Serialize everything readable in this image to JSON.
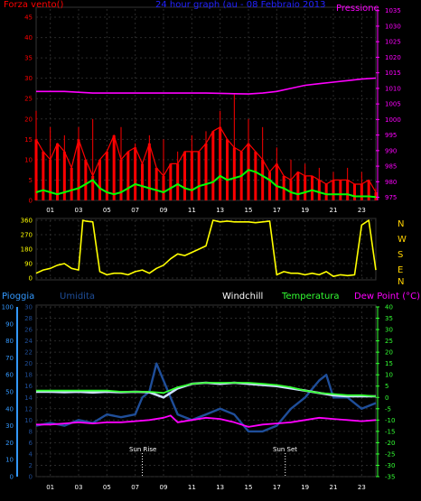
{
  "header": {
    "top_left": "Forza vento()",
    "top_center": "24 hour graph (au - 08 Febbraio 2013",
    "top_right": "Pressione",
    "bottom_pioggia": "Pioggia",
    "bottom_umidita": "Umidita",
    "bottom_windchill": "Windchill",
    "bottom_temperatura": "Temperatura",
    "bottom_dewpoint": "Dew Point (°C)"
  },
  "compass": [
    "N",
    "W",
    "S",
    "E",
    "N"
  ],
  "sun": {
    "rise": "Sun Rise",
    "set": "Sun Set"
  },
  "colors": {
    "wind_gust": "#ff0000",
    "wind_avg": "#00ff00",
    "pressure": "#ff00ff",
    "direction": "#ffff00",
    "rain": "#3399ff",
    "humidity": "#1f4e99",
    "windchill": "#cfe0ff",
    "temperature": "#33ff33",
    "dewpoint": "#ff00ff",
    "axis_wind": "#ff0000",
    "axis_pressure": "#ff00ff",
    "axis_dir": "#ffff00",
    "axis_temp": "#33ff33",
    "axis_rain": "#3399ff",
    "axis_hum": "#1f4e99"
  },
  "chart_data": [
    {
      "type": "line",
      "title": "24 hour graph (au - 08 Febbraio 2013",
      "x_tick_labels": [
        "01",
        "03",
        "05",
        "07",
        "09",
        "11",
        "13",
        "15",
        "17",
        "19",
        "21",
        "23"
      ],
      "x_ticks_hours": [
        1,
        3,
        5,
        7,
        9,
        11,
        13,
        15,
        17,
        19,
        21,
        23
      ],
      "left_axis": {
        "label": "Forza vento()",
        "ticks": [
          0,
          5,
          10,
          15,
          20,
          25,
          30,
          35,
          40,
          45
        ],
        "ylim": [
          0,
          47
        ]
      },
      "right_axis": {
        "label": "Pressione",
        "ticks": [
          975,
          980,
          985,
          990,
          995,
          1000,
          1005,
          1010,
          1015,
          1020,
          1025,
          1030,
          1035
        ],
        "ylim": [
          974,
          1035.5
        ]
      },
      "series": [
        {
          "name": "Forza vento",
          "axis": "left",
          "x": [
            0,
            0.5,
            1,
            1.5,
            2,
            2.5,
            3,
            3.5,
            4,
            4.5,
            5,
            5.5,
            6,
            6.5,
            7,
            7.5,
            8,
            8.5,
            9,
            9.5,
            10,
            10.5,
            11,
            11.5,
            12,
            12.5,
            13,
            13.5,
            14,
            14.5,
            15,
            15.5,
            16,
            16.5,
            17,
            17.5,
            18,
            18.5,
            19,
            19.5,
            20,
            20.5,
            21,
            21.5,
            22,
            22.5,
            23,
            23.5,
            24
          ],
          "values": [
            15,
            12,
            10,
            14,
            12,
            8,
            15,
            10,
            6,
            10,
            12,
            16,
            10,
            12,
            13,
            9,
            14,
            8,
            6,
            9,
            9,
            12,
            12,
            12,
            14,
            17,
            18,
            15,
            13,
            12,
            14,
            12,
            10,
            7,
            9,
            6,
            5,
            7,
            6,
            6,
            5,
            4,
            5,
            5,
            5,
            4,
            4,
            5,
            2
          ]
        },
        {
          "name": "Raffica",
          "axis": "left",
          "x": [
            0,
            1,
            2,
            3,
            4,
            5,
            6,
            7,
            8,
            9,
            10,
            11,
            12,
            13,
            14,
            15,
            16,
            17,
            18,
            19,
            20,
            21,
            22,
            23,
            24
          ],
          "values": [
            22,
            18,
            16,
            18,
            20,
            10,
            18,
            14,
            16,
            15,
            12,
            16,
            17,
            22,
            26,
            20,
            18,
            13,
            10,
            9,
            8,
            7,
            8,
            7,
            3
          ]
        },
        {
          "name": "Media",
          "axis": "left",
          "x": [
            0,
            0.5,
            1,
            1.5,
            2,
            2.5,
            3,
            3.5,
            4,
            4.5,
            5,
            5.5,
            6,
            6.5,
            7,
            7.5,
            8,
            8.5,
            9,
            9.5,
            10,
            10.5,
            11,
            11.5,
            12,
            12.5,
            13,
            13.5,
            14,
            14.5,
            15,
            15.5,
            16,
            16.5,
            17,
            17.5,
            18,
            18.5,
            19,
            19.5,
            20,
            20.5,
            21,
            21.5,
            22,
            22.5,
            23,
            23.5,
            24
          ],
          "values": [
            2,
            2.5,
            2,
            1.5,
            2,
            2.5,
            3,
            4,
            5,
            3,
            2,
            1.5,
            2,
            3,
            4,
            3.5,
            3,
            2.5,
            2,
            3,
            4,
            3,
            2.5,
            3.5,
            4,
            4.5,
            6,
            5,
            5.5,
            6,
            7.5,
            7,
            6,
            5,
            3.5,
            3,
            2,
            1.5,
            2,
            2.5,
            2,
            1.5,
            1.5,
            1.5,
            1.5,
            1,
            1,
            1,
            0.8
          ]
        },
        {
          "name": "Pressione",
          "axis": "right",
          "x": [
            0,
            2,
            4,
            6,
            8,
            10,
            12,
            14,
            15,
            16,
            17,
            18,
            19,
            20,
            21,
            22,
            23,
            24
          ],
          "values": [
            1009,
            1009,
            1008.5,
            1008.5,
            1008.5,
            1008.5,
            1008.5,
            1008.3,
            1008.2,
            1008.5,
            1009,
            1010,
            1011,
            1011.5,
            1012,
            1012.5,
            1013,
            1013.3
          ]
        }
      ]
    },
    {
      "type": "line",
      "title": "",
      "x_tick_labels": [
        "01",
        "03",
        "05",
        "07",
        "09",
        "11",
        "13",
        "15",
        "17",
        "19",
        "21",
        "23"
      ],
      "left_axis": {
        "ticks": [
          0,
          90,
          180,
          270,
          360
        ],
        "ylim": [
          0,
          360
        ]
      },
      "right_axis": {
        "ticks": [
          "N",
          "W",
          "S",
          "E",
          "N"
        ]
      },
      "series": [
        {
          "name": "Direzione",
          "x": [
            0,
            0.5,
            1,
            1.5,
            2,
            2.5,
            3,
            3.3,
            3.5,
            4,
            4.5,
            5,
            5.5,
            6,
            6.5,
            7,
            7.5,
            8,
            8.5,
            9,
            9.5,
            10,
            10.5,
            11,
            11.5,
            12,
            12.5,
            13,
            13.5,
            14,
            14.5,
            15,
            15.5,
            16,
            16.5,
            17,
            17.5,
            18,
            18.5,
            19,
            19.5,
            20,
            20.5,
            21,
            21.5,
            22,
            22.5,
            23,
            23.5,
            24
          ],
          "values": [
            30,
            50,
            60,
            80,
            90,
            60,
            50,
            360,
            355,
            350,
            40,
            20,
            30,
            30,
            20,
            40,
            50,
            30,
            60,
            80,
            120,
            150,
            140,
            160,
            180,
            200,
            360,
            350,
            355,
            350,
            350,
            350,
            345,
            350,
            355,
            20,
            40,
            30,
            30,
            20,
            30,
            20,
            40,
            10,
            20,
            15,
            20,
            330,
            360,
            50
          ]
        }
      ]
    },
    {
      "type": "line",
      "title": "",
      "x_tick_labels": [
        "01",
        "03",
        "05",
        "07",
        "09",
        "11",
        "13",
        "15",
        "17",
        "19",
        "21",
        "23"
      ],
      "axes": {
        "pioggia_left": {
          "label": "Pioggia",
          "ticks": [
            0,
            10,
            20,
            30,
            40,
            50,
            60,
            70,
            80,
            90,
            100
          ],
          "ylim": [
            0,
            100
          ]
        },
        "umidita_left": {
          "label": "Umidita",
          "ticks": [
            0,
            2,
            4,
            6,
            8,
            10,
            12,
            14,
            16,
            18,
            20,
            22,
            24,
            26,
            28,
            30
          ],
          "ylim": [
            0,
            30
          ]
        },
        "temp_right": {
          "label": "Dew Point (°C)",
          "ticks": [
            -35,
            -30,
            -25,
            -20,
            -15,
            -10,
            -5,
            0,
            5,
            10,
            15,
            20,
            25,
            30,
            35,
            40
          ],
          "ylim": [
            -35,
            40
          ]
        }
      },
      "annotations": {
        "sun_rise_hour": 7.5,
        "sun_set_hour": 17.6
      },
      "series": [
        {
          "name": "Umidita",
          "axis": "umidita_left",
          "x": [
            0,
            1,
            2,
            3,
            4,
            5,
            6,
            7,
            7.5,
            8,
            8.5,
            9,
            9.5,
            10,
            11,
            12,
            13,
            14,
            15,
            16,
            17,
            18,
            19,
            20,
            20.5,
            21,
            22,
            23,
            24
          ],
          "values": [
            9,
            9.5,
            9,
            10,
            9.5,
            11,
            10.5,
            11,
            14,
            15,
            20,
            17,
            14,
            11,
            10,
            11,
            12,
            11,
            8,
            8,
            9,
            12,
            14,
            17,
            18,
            14,
            14,
            12,
            13
          ]
        },
        {
          "name": "Windchill",
          "axis": "temp_right",
          "x": [
            0,
            1,
            2,
            3,
            4,
            5,
            6,
            7,
            8,
            9,
            10,
            11,
            12,
            13,
            14,
            15,
            16,
            17,
            18,
            19,
            20,
            21,
            22,
            23,
            24
          ],
          "values": [
            2.5,
            2.5,
            2.3,
            2.5,
            2.2,
            2.5,
            2.3,
            2.5,
            2.3,
            0,
            4,
            6,
            6.5,
            6,
            6.5,
            6,
            5.5,
            5,
            4,
            3,
            2,
            1,
            0.5,
            0.5,
            0.5
          ]
        },
        {
          "name": "Temperatura",
          "axis": "temp_right",
          "x": [
            0,
            1,
            2,
            3,
            4,
            5,
            6,
            7,
            8,
            9,
            10,
            11,
            12,
            13,
            14,
            15,
            16,
            17,
            18,
            19,
            20,
            21,
            22,
            23,
            24
          ],
          "values": [
            3,
            3,
            3,
            3,
            3,
            3,
            2.5,
            2.5,
            2.5,
            2,
            4.5,
            6,
            6.5,
            6.5,
            6.5,
            6.5,
            6,
            5.5,
            4.5,
            3,
            2,
            1.5,
            1,
            1,
            0.5
          ]
        },
        {
          "name": "Dew Point",
          "axis": "temp_right",
          "x": [
            0,
            1,
            2,
            3,
            4,
            5,
            6,
            7,
            8,
            9,
            9.5,
            10,
            11,
            12,
            13,
            14,
            15,
            16,
            17,
            18,
            19,
            20,
            21,
            22,
            23,
            24
          ],
          "values": [
            -12,
            -12,
            -11.5,
            -11,
            -11.5,
            -11,
            -11,
            -10.5,
            -10,
            -9,
            -8,
            -11,
            -10,
            -9,
            -9.5,
            -11,
            -13,
            -12,
            -11.5,
            -11,
            -10,
            -9,
            -9.5,
            -10,
            -10.5,
            -10
          ]
        }
      ]
    }
  ]
}
